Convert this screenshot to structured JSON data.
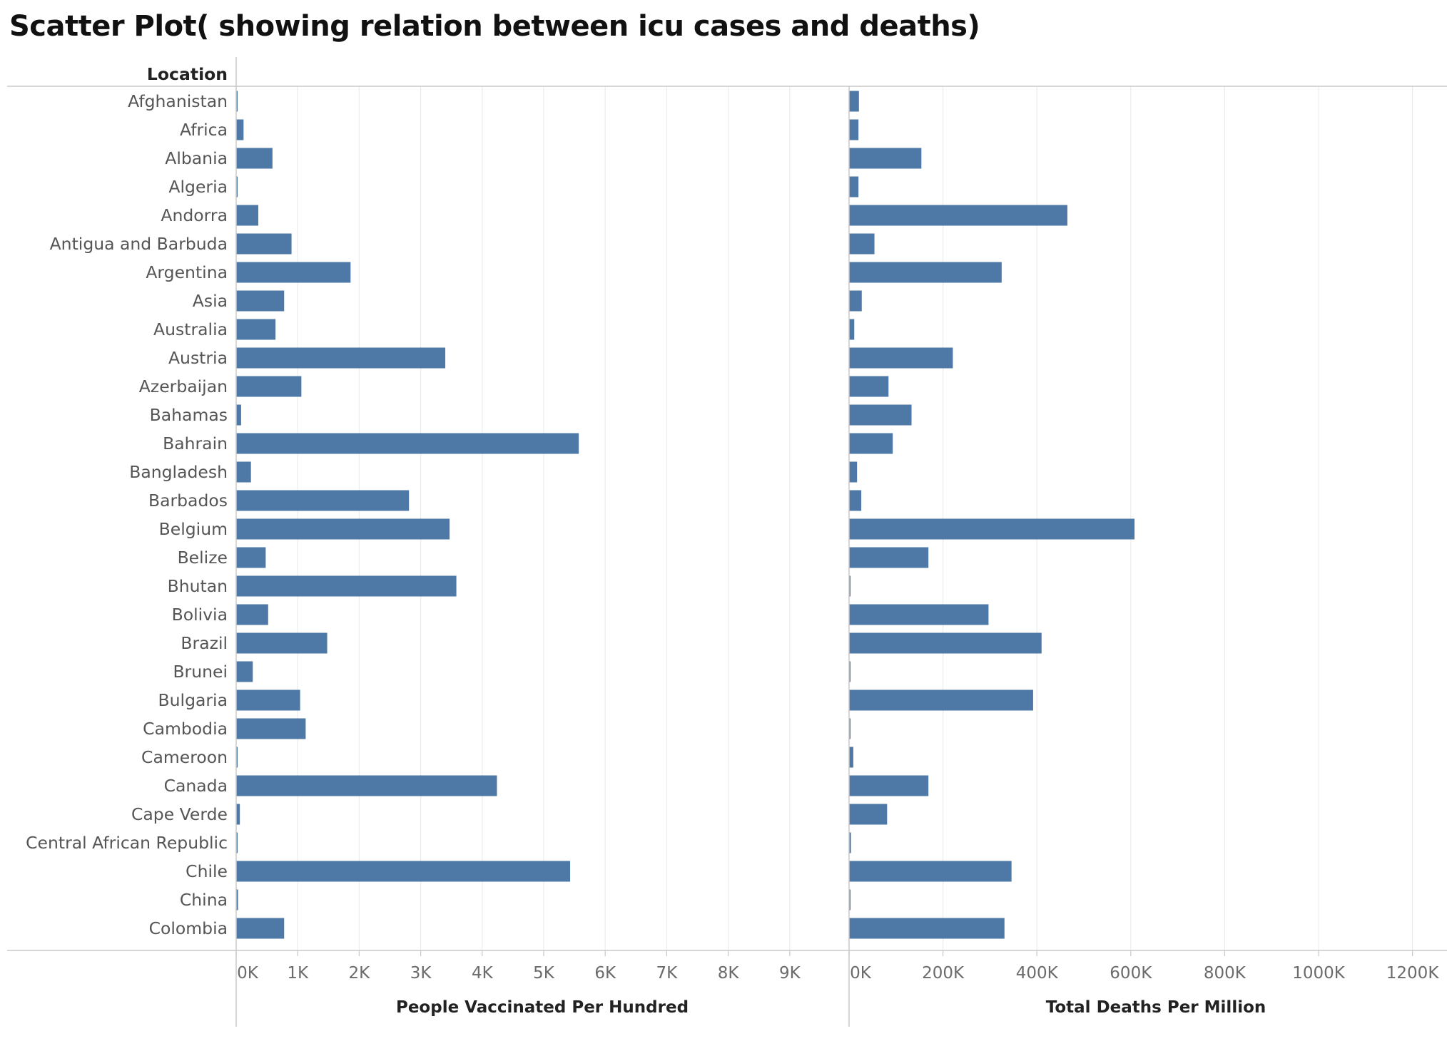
{
  "title": "Scatter Plot( showing relation between icu cases and deaths)",
  "row_header": "Location",
  "colors": {
    "bar": "#4e79a7",
    "grid": "#ececec",
    "axis": "#c8c8c8"
  },
  "chart_data": [
    {
      "type": "bar",
      "orientation": "horizontal",
      "xlabel": "People Vaccinated Per Hundred",
      "xlim": [
        0,
        9500
      ],
      "xticks": [
        0,
        1000,
        2000,
        3000,
        4000,
        5000,
        6000,
        7000,
        8000,
        9000
      ],
      "xtick_labels": [
        "0K",
        "1K",
        "2K",
        "3K",
        "4K",
        "5K",
        "6K",
        "7K",
        "8K",
        "9K"
      ],
      "grid": true,
      "categories": [
        "Afghanistan",
        "Africa",
        "Albania",
        "Algeria",
        "Andorra",
        "Antigua and Barbuda",
        "Argentina",
        "Asia",
        "Australia",
        "Austria",
        "Azerbaijan",
        "Bahamas",
        "Bahrain",
        "Bangladesh",
        "Barbados",
        "Belgium",
        "Belize",
        "Bhutan",
        "Bolivia",
        "Brazil",
        "Brunei",
        "Bulgaria",
        "Cambodia",
        "Cameroon",
        "Canada",
        "Cape Verde",
        "Central African Republic",
        "Chile",
        "China",
        "Colombia"
      ],
      "values": [
        15,
        120,
        590,
        15,
        360,
        900,
        1860,
        780,
        640,
        3400,
        1060,
        80,
        5570,
        240,
        2810,
        3470,
        480,
        3580,
        520,
        1480,
        270,
        1040,
        1130,
        10,
        4240,
        60,
        10,
        5430,
        30,
        780
      ]
    },
    {
      "type": "bar",
      "orientation": "horizontal",
      "xlabel": "Total Deaths Per Million",
      "xlim": [
        0,
        1250000
      ],
      "xticks": [
        0,
        200000,
        400000,
        600000,
        800000,
        1000000,
        1200000
      ],
      "xtick_labels": [
        "0K",
        "200K",
        "400K",
        "600K",
        "800K",
        "1000K",
        "1200K"
      ],
      "grid": true,
      "categories": [
        "Afghanistan",
        "Africa",
        "Albania",
        "Algeria",
        "Andorra",
        "Antigua and Barbuda",
        "Argentina",
        "Asia",
        "Australia",
        "Austria",
        "Azerbaijan",
        "Bahamas",
        "Bahrain",
        "Bangladesh",
        "Barbados",
        "Belgium",
        "Belize",
        "Bhutan",
        "Bolivia",
        "Brazil",
        "Brunei",
        "Bulgaria",
        "Cambodia",
        "Cameroon",
        "Canada",
        "Cape Verde",
        "Central African Republic",
        "Chile",
        "China",
        "Colombia"
      ],
      "values": [
        21000,
        20000,
        154000,
        20000,
        465000,
        54000,
        325000,
        27000,
        11000,
        221000,
        84000,
        133000,
        93000,
        17000,
        26000,
        608000,
        169000,
        1500,
        297000,
        410000,
        1500,
        392000,
        2000,
        9000,
        169000,
        81000,
        4000,
        346000,
        1500,
        331000
      ]
    }
  ]
}
